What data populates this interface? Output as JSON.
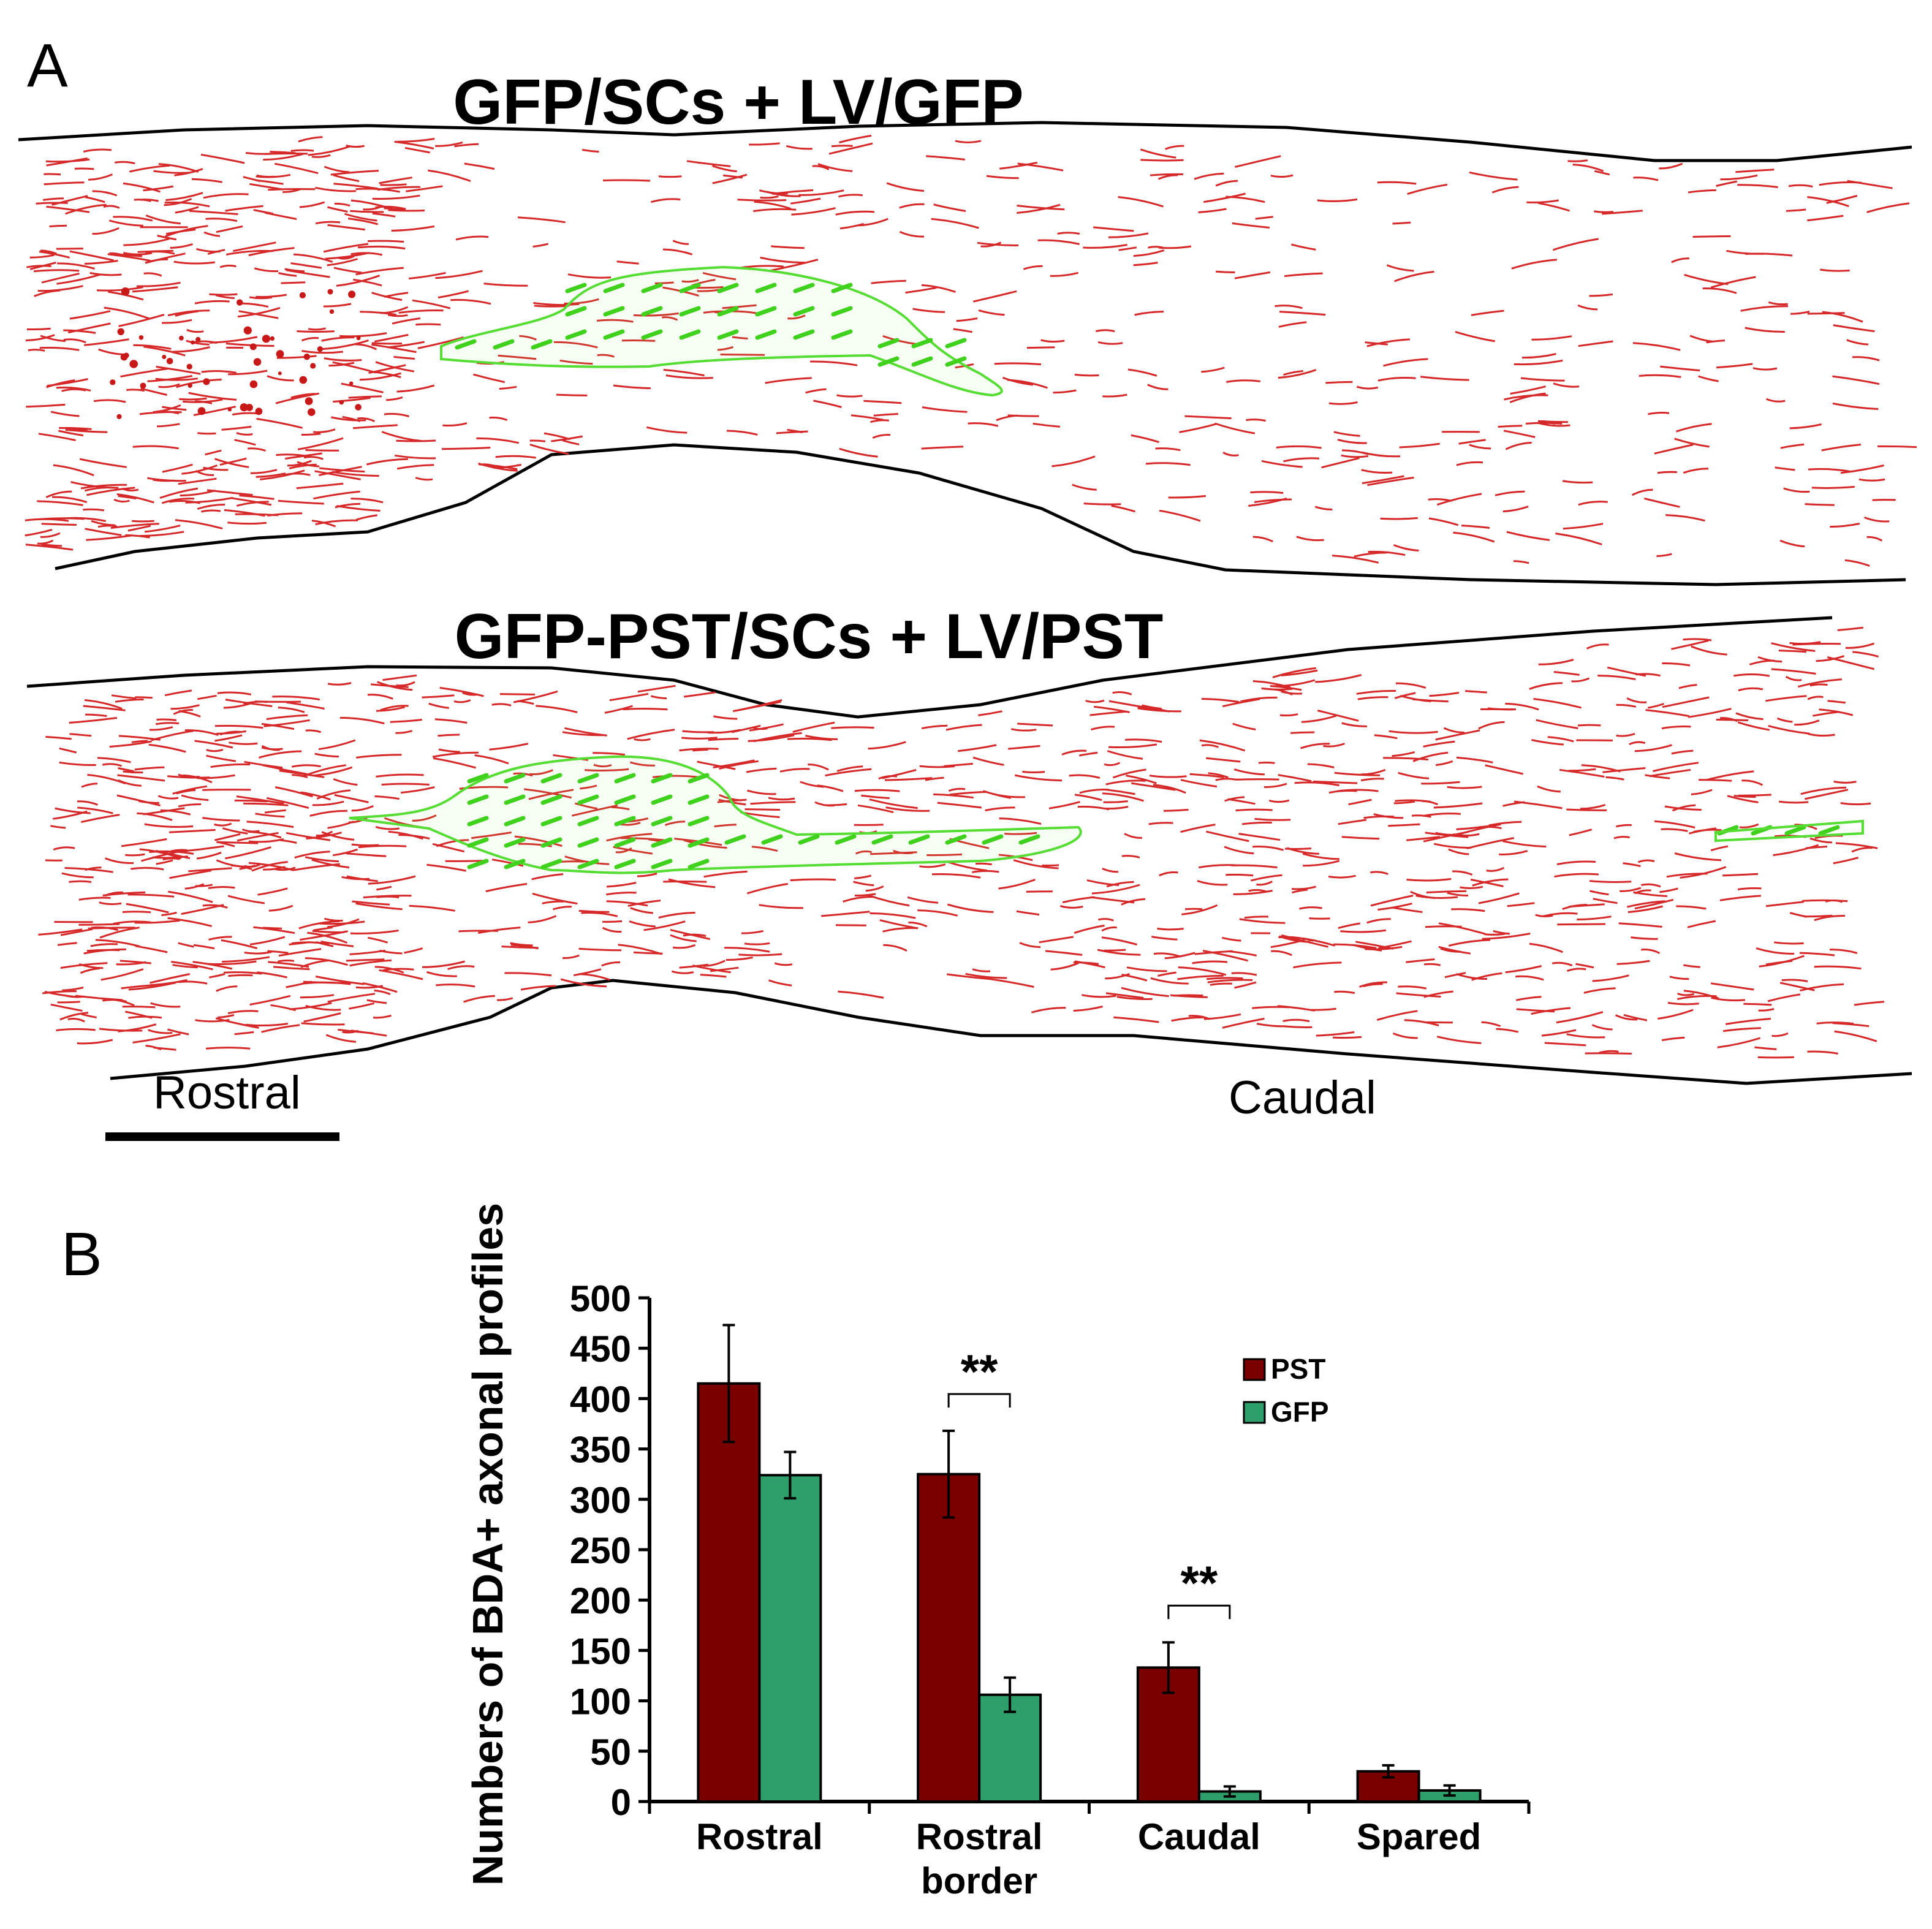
{
  "panel_a": {
    "letter": "A",
    "top_section_title": "GFP/SCs + LV/GFP",
    "bottom_section_title": "GFP-PST/SCs + LV/PST",
    "rostral_label": "Rostral",
    "caudal_label": "Caudal",
    "colors": {
      "axon": "#d62828",
      "graft": "#44dd22",
      "outline": "#000000"
    }
  },
  "panel_b": {
    "letter": "B"
  },
  "chart_data": {
    "type": "bar",
    "categories": [
      "Rostral",
      "Rostral border",
      "Caudal",
      "Spared"
    ],
    "category_lines": [
      [
        "Rostral"
      ],
      [
        "Rostral",
        "border"
      ],
      [
        "Caudal"
      ],
      [
        "Spared"
      ]
    ],
    "series": [
      {
        "name": "PST",
        "color": "#7a0000",
        "values": [
          415,
          325,
          133,
          30
        ],
        "errors": [
          58,
          43,
          25,
          6
        ]
      },
      {
        "name": "GFP",
        "color": "#2e9e6a",
        "values": [
          324,
          106,
          10,
          11
        ],
        "errors": [
          23,
          17,
          5,
          5
        ]
      }
    ],
    "ylabel": "Numbers of BDA+ axonal profiles",
    "xlabel": "",
    "ylim": [
      0,
      500
    ],
    "yticks": [
      0,
      50,
      100,
      150,
      200,
      250,
      300,
      350,
      400,
      450,
      500
    ],
    "significance": [
      {
        "category": "Rostral border",
        "label": "**"
      },
      {
        "category": "Caudal",
        "label": "**"
      }
    ],
    "legend_position": "top-right",
    "grid": false
  }
}
